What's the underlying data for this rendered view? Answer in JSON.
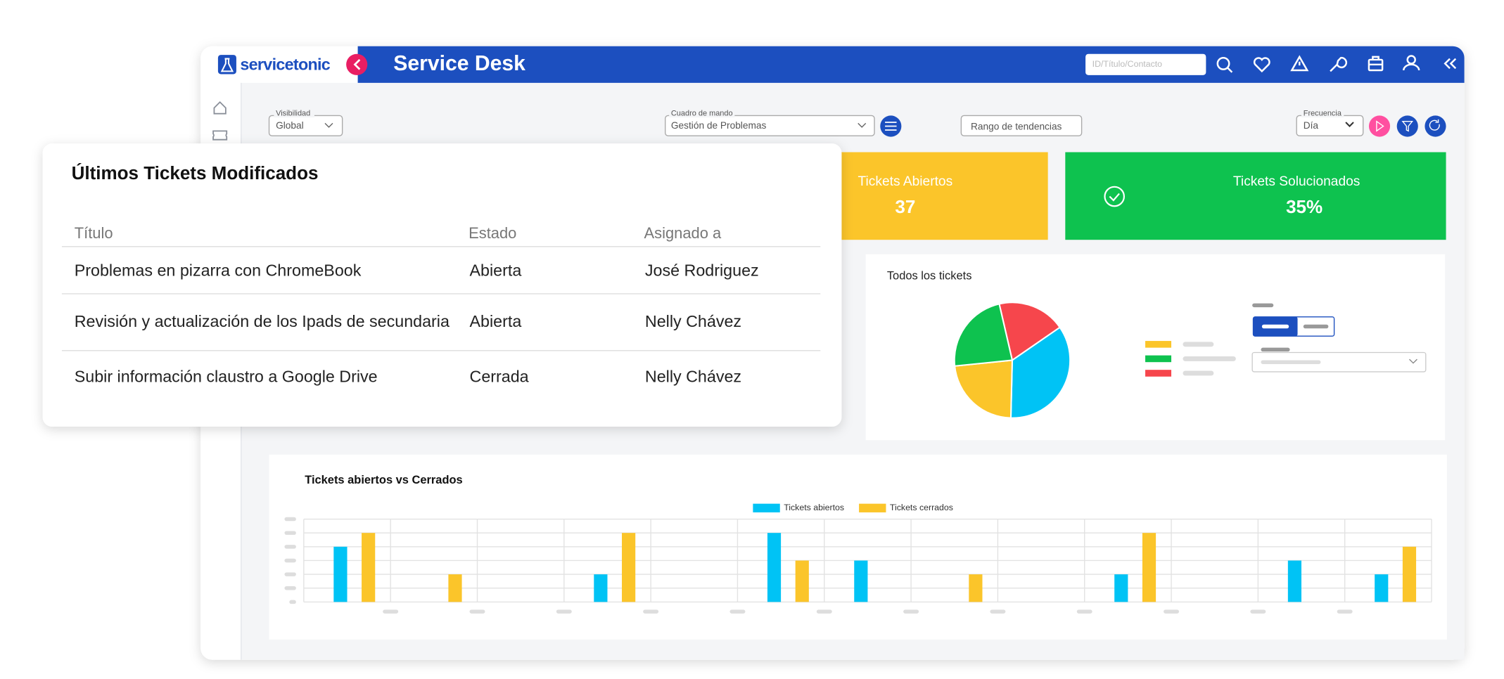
{
  "header": {
    "logo": "servicetonic",
    "title": "Service Desk",
    "search_placeholder": "ID/Título/Contacto"
  },
  "filters": {
    "visibility_label": "Visibilidad",
    "visibility_value": "Global",
    "dashboard_label": "Cuadro de mando",
    "dashboard_value": "Gestión de Problemas",
    "trend_range": "Rango de tendencias",
    "frequency_label": "Frecuencia",
    "frequency_value": "Día"
  },
  "kpis": {
    "open_label": "Tickets Abiertos",
    "open_value": "37",
    "solved_label": "Tickets Solucionados",
    "solved_value": "35%"
  },
  "table": {
    "title": "Últimos Tickets Modificados",
    "headers": [
      "Título",
      "Estado",
      "Asignado a"
    ],
    "rows": [
      [
        "Problemas en pizarra con ChromeBook",
        "Abierta",
        "José Rodriguez"
      ],
      [
        "Revisión y actualización de los Ipads de secundaria",
        "Abierta",
        "Nelly Chávez"
      ],
      [
        "Subir información claustro a Google Drive",
        "Cerrada",
        "Nelly Chávez"
      ]
    ]
  },
  "chart_data": [
    {
      "type": "pie",
      "title": "Todos los tickets",
      "values": [
        19,
        35,
        23,
        23
      ],
      "colors": [
        "#f6464c",
        "#00c3f5",
        "#fbc52a",
        "#0ec24f"
      ]
    },
    {
      "type": "bar",
      "title": "Tickets abiertos vs Cerrados",
      "categories": [
        null,
        null,
        null,
        null,
        null,
        null,
        null,
        null,
        null,
        null,
        null,
        null,
        null
      ],
      "series": [
        {
          "name": "Tickets abiertos",
          "color": "#00c3f5",
          "values": [
            4,
            0,
            0,
            2,
            0,
            5,
            3,
            0,
            0,
            2,
            0,
            3,
            2
          ]
        },
        {
          "name": "Tickets cerrados",
          "color": "#fbc52a",
          "values": [
            5,
            2,
            0,
            5,
            0,
            3,
            0,
            2,
            0,
            5,
            0,
            0,
            4
          ]
        }
      ],
      "ylim": [
        0,
        6
      ],
      "yticks": [
        0,
        1,
        2,
        3,
        4,
        5,
        6
      ],
      "grid": true
    }
  ]
}
